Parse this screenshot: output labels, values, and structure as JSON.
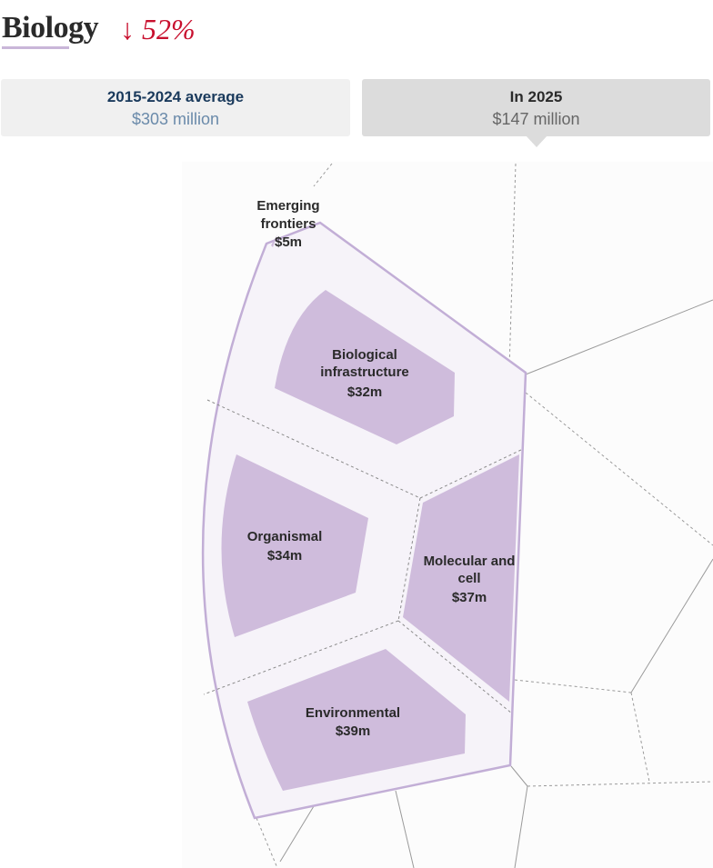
{
  "header": {
    "title": "Biology",
    "change": "↓ 52%"
  },
  "summary": {
    "average": {
      "label": "2015-2024 average",
      "value": "$303 million"
    },
    "current": {
      "label": "In 2025",
      "value": "$147 million"
    }
  },
  "colors": {
    "accent": "#c8102e",
    "fill": "#cfbcdc",
    "outer_fill": "#f6f3f9",
    "border": "#c2aed6",
    "dashed": "#999999"
  },
  "chart_data": {
    "type": "treemap",
    "title": "Biology",
    "unit": "$ million",
    "total_2025": 147,
    "average_2015_2024": 303,
    "series": [
      {
        "name": "Emerging frontiers",
        "value": 5,
        "label": "$5m"
      },
      {
        "name": "Biological infrastructure",
        "value": 32,
        "label": "$32m"
      },
      {
        "name": "Organismal",
        "value": 34,
        "label": "$34m"
      },
      {
        "name": "Molecular and cell",
        "value": 37,
        "label": "$37m"
      },
      {
        "name": "Environmental",
        "value": 39,
        "label": "$39m"
      }
    ]
  }
}
